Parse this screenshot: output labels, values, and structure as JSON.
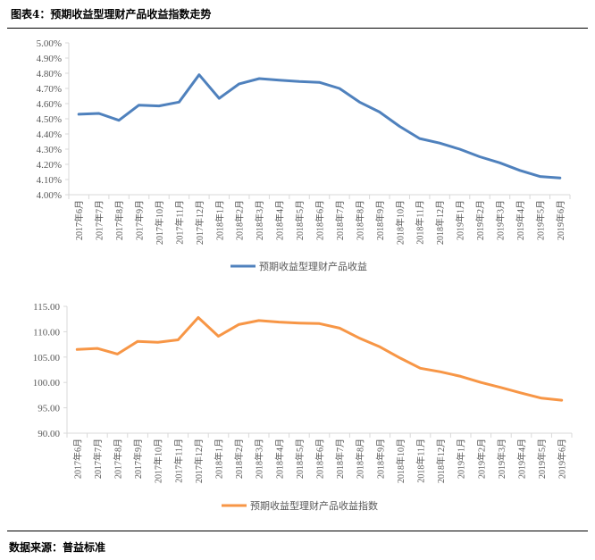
{
  "title": "图表4：预期收益型理财产品收益指数走势",
  "source": "数据来源：普益标准",
  "chart_data": [
    {
      "type": "line",
      "categories": [
        "2017年6月",
        "2017年7月",
        "2017年8月",
        "2017年9月",
        "2017年10月",
        "2017年11月",
        "2017年12月",
        "2018年1月",
        "2018年2月",
        "2018年3月",
        "2018年4月",
        "2018年5月",
        "2018年6月",
        "2018年7月",
        "2018年8月",
        "2018年9月",
        "2018年10月",
        "2018年11月",
        "2018年12月",
        "2019年1月",
        "2019年2月",
        "2019年3月",
        "2019年4月",
        "2019年5月",
        "2019年6月"
      ],
      "series": [
        {
          "name": "预期收益型理财产品收益",
          "color": "#4F81BD",
          "values": [
            4.53,
            4.535,
            4.49,
            4.59,
            4.585,
            4.61,
            4.79,
            4.635,
            4.73,
            4.765,
            4.755,
            4.745,
            4.74,
            4.7,
            4.61,
            4.545,
            4.45,
            4.37,
            4.34,
            4.3,
            4.25,
            4.21,
            4.16,
            4.12,
            4.11
          ]
        }
      ],
      "ylim": [
        4.0,
        5.0
      ],
      "yticks": [
        "4.00%",
        "4.10%",
        "4.20%",
        "4.30%",
        "4.40%",
        "4.50%",
        "4.60%",
        "4.70%",
        "4.80%",
        "4.90%",
        "5.00%"
      ],
      "ytick_values": [
        4.0,
        4.1,
        4.2,
        4.3,
        4.4,
        4.5,
        4.6,
        4.7,
        4.8,
        4.9,
        5.0
      ],
      "legend": "bottom",
      "grid": false
    },
    {
      "type": "line",
      "categories": [
        "2017年6月",
        "2017年7月",
        "2017年8月",
        "2017年9月",
        "2017年10月",
        "2017年11月",
        "2017年12月",
        "2018年1月",
        "2018年2月",
        "2018年3月",
        "2018年4月",
        "2018年5月",
        "2018年6月",
        "2018年7月",
        "2018年8月",
        "2018年9月",
        "2018年10月",
        "2018年11月",
        "2018年12月",
        "2019年1月",
        "2019年2月",
        "2019年3月",
        "2019年4月",
        "2019年5月",
        "2019年6月"
      ],
      "series": [
        {
          "name": "预期收益型理财产品收益指数",
          "color": "#F79646",
          "values": [
            106.5,
            106.7,
            105.6,
            108.1,
            107.9,
            108.4,
            112.8,
            109.1,
            111.4,
            112.2,
            111.9,
            111.7,
            111.6,
            110.7,
            108.7,
            107.0,
            104.8,
            102.8,
            102.1,
            101.2,
            100.0,
            99.0,
            97.9,
            96.9,
            96.5
          ]
        }
      ],
      "ylim": [
        90,
        115
      ],
      "yticks": [
        "90.00",
        "95.00",
        "100.00",
        "105.00",
        "110.00",
        "115.00"
      ],
      "ytick_values": [
        90,
        95,
        100,
        105,
        110,
        115
      ],
      "legend": "bottom",
      "grid": false
    }
  ]
}
